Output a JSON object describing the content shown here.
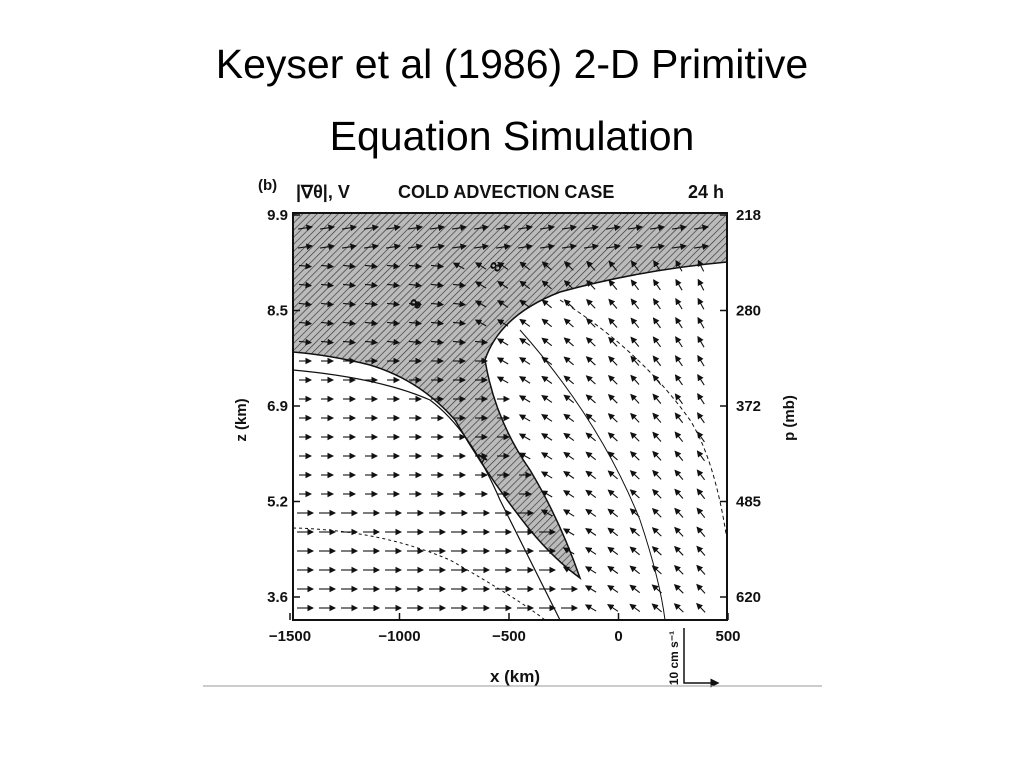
{
  "slide": {
    "title_lines": [
      "Keyser et al (1986) 2-D Primitive",
      "Equation Simulation"
    ]
  },
  "figure": {
    "panel_label": "(b)",
    "field_label": "|∇θ|, V",
    "case_title": "COLD ADVECTION CASE",
    "time_label": "24 h",
    "left_axis": {
      "label": "z (km)",
      "ticks": [
        "9.9",
        "8.5",
        "6.9",
        "5.2",
        "3.6"
      ]
    },
    "right_axis": {
      "label": "p (mb)",
      "ticks": [
        "218",
        "280",
        "372",
        "485",
        "620"
      ]
    },
    "bottom_axis": {
      "label": "x (km)",
      "ticks": [
        "−1500",
        "−1000",
        "−500",
        "0",
        "500"
      ]
    },
    "vector_scale_label": "10 cm s⁻¹",
    "contour_labels": [
      "8",
      "8",
      "4"
    ]
  }
}
